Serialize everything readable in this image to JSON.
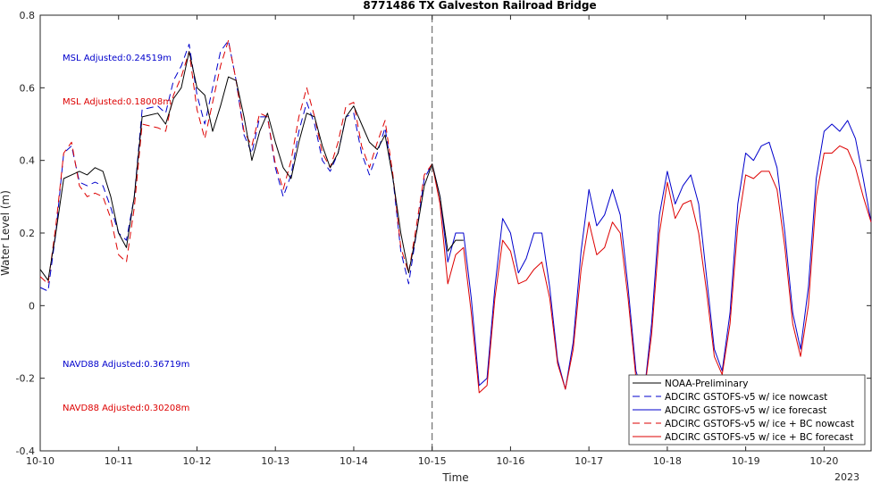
{
  "chart_data": {
    "type": "line",
    "title": "8771486 TX Galveston Railroad Bridge",
    "xlabel": "Time",
    "ylabel": "Water Level (m)",
    "x_year_label": "2023",
    "ylim": [
      -0.4,
      0.8
    ],
    "yticks": [
      -0.4,
      -0.2,
      0,
      0.2,
      0.4,
      0.6,
      0.8
    ],
    "ytick_labels": [
      "-0.4",
      "-0.2",
      "0",
      "0.2",
      "0.4",
      "0.6",
      "0.8"
    ],
    "xlim_days": [
      10.0,
      20.6
    ],
    "xticks_days": [
      10,
      11,
      12,
      13,
      14,
      15,
      16,
      17,
      18,
      19,
      20
    ],
    "xtick_labels": [
      "10-10",
      "10-11",
      "10-12",
      "10-13",
      "10-14",
      "10-15",
      "10-16",
      "10-17",
      "10-18",
      "10-19",
      "10-20"
    ],
    "forecast_start_day": 15.0,
    "grid": false,
    "legend_position": "bottom-right",
    "annotations": [
      {
        "text": "MSL Adjusted:0.24519m",
        "color": "#0000cc"
      },
      {
        "text": "MSL Adjusted:0.18008m",
        "color": "#dd0000"
      },
      {
        "text": "NAVD88 Adjusted:0.36719m",
        "color": "#0000cc"
      },
      {
        "text": "NAVD88 Adjusted:0.30208m",
        "color": "#dd0000"
      }
    ],
    "series": [
      {
        "name": "NOAA-Preliminary",
        "color": "#000000",
        "dash": "solid",
        "x": [
          10.0,
          10.1,
          10.2,
          10.3,
          10.4,
          10.5,
          10.6,
          10.7,
          10.8,
          10.9,
          11.0,
          11.1,
          11.2,
          11.3,
          11.5,
          11.6,
          11.7,
          11.8,
          11.9,
          12.0,
          12.1,
          12.2,
          12.3,
          12.4,
          12.5,
          12.6,
          12.7,
          12.8,
          12.9,
          13.0,
          13.1,
          13.2,
          13.3,
          13.4,
          13.5,
          13.6,
          13.7,
          13.8,
          13.9,
          14.0,
          14.1,
          14.2,
          14.3,
          14.4,
          14.5,
          14.6,
          14.7,
          14.8,
          14.9,
          15.0,
          15.1,
          15.2,
          15.3,
          15.4
        ],
        "y": [
          0.1,
          0.07,
          0.2,
          0.35,
          0.36,
          0.37,
          0.36,
          0.38,
          0.37,
          0.3,
          0.2,
          0.16,
          0.3,
          0.52,
          0.53,
          0.5,
          0.57,
          0.6,
          0.7,
          0.6,
          0.58,
          0.48,
          0.55,
          0.63,
          0.62,
          0.52,
          0.4,
          0.48,
          0.53,
          0.45,
          0.38,
          0.35,
          0.45,
          0.53,
          0.52,
          0.44,
          0.38,
          0.42,
          0.52,
          0.55,
          0.5,
          0.45,
          0.43,
          0.47,
          0.35,
          0.2,
          0.09,
          0.2,
          0.33,
          0.39,
          0.3,
          0.15,
          0.18,
          0.18
        ]
      },
      {
        "name": "ADCIRC GSTOFS-v5 w/ ice nowcast",
        "color": "#0000cc",
        "dash": "dashed",
        "x": [
          10.0,
          10.1,
          10.2,
          10.3,
          10.4,
          10.5,
          10.6,
          10.7,
          10.8,
          10.9,
          11.0,
          11.1,
          11.2,
          11.3,
          11.5,
          11.6,
          11.7,
          11.8,
          11.9,
          12.0,
          12.1,
          12.2,
          12.3,
          12.4,
          12.5,
          12.6,
          12.7,
          12.8,
          12.9,
          13.0,
          13.1,
          13.2,
          13.3,
          13.4,
          13.5,
          13.6,
          13.7,
          13.8,
          13.9,
          14.0,
          14.1,
          14.2,
          14.3,
          14.4,
          14.5,
          14.6,
          14.7,
          14.8,
          14.9,
          15.0
        ],
        "y": [
          0.05,
          0.04,
          0.2,
          0.42,
          0.44,
          0.34,
          0.33,
          0.34,
          0.33,
          0.27,
          0.2,
          0.18,
          0.3,
          0.54,
          0.55,
          0.53,
          0.62,
          0.66,
          0.72,
          0.58,
          0.5,
          0.6,
          0.7,
          0.73,
          0.62,
          0.47,
          0.42,
          0.52,
          0.52,
          0.38,
          0.3,
          0.36,
          0.48,
          0.56,
          0.5,
          0.4,
          0.37,
          0.42,
          0.52,
          0.53,
          0.42,
          0.36,
          0.42,
          0.49,
          0.35,
          0.15,
          0.06,
          0.2,
          0.35,
          0.39
        ]
      },
      {
        "name": "ADCIRC GSTOFS-v5 w/ ice forecast",
        "color": "#0000cc",
        "dash": "solid",
        "x": [
          15.0,
          15.1,
          15.2,
          15.3,
          15.4,
          15.5,
          15.6,
          15.7,
          15.8,
          15.9,
          16.0,
          16.1,
          16.2,
          16.3,
          16.4,
          16.5,
          16.6,
          16.7,
          16.8,
          16.9,
          17.0,
          17.1,
          17.2,
          17.3,
          17.4,
          17.5,
          17.6,
          17.7,
          17.8,
          17.9,
          18.0,
          18.1,
          18.2,
          18.3,
          18.4,
          18.5,
          18.6,
          18.7,
          18.8,
          18.9,
          19.0,
          19.1,
          19.2,
          19.3,
          19.4,
          19.5,
          19.6,
          19.7,
          19.8,
          19.9,
          20.0,
          20.1,
          20.2,
          20.3,
          20.4,
          20.5,
          20.6
        ],
        "y": [
          0.39,
          0.3,
          0.12,
          0.2,
          0.2,
          0.02,
          -0.22,
          -0.2,
          0.05,
          0.24,
          0.2,
          0.09,
          0.13,
          0.2,
          0.2,
          0.05,
          -0.15,
          -0.23,
          -0.1,
          0.15,
          0.32,
          0.22,
          0.25,
          0.32,
          0.25,
          0.05,
          -0.18,
          -0.25,
          -0.05,
          0.25,
          0.37,
          0.28,
          0.33,
          0.36,
          0.28,
          0.08,
          -0.12,
          -0.18,
          -0.02,
          0.28,
          0.42,
          0.4,
          0.44,
          0.45,
          0.38,
          0.2,
          -0.02,
          -0.12,
          0.05,
          0.35,
          0.48,
          0.5,
          0.48,
          0.51,
          0.46,
          0.35,
          0.23
        ]
      },
      {
        "name": "ADCIRC GSTOFS-v5 w/ ice + BC nowcast",
        "color": "#dd0000",
        "dash": "dashed",
        "x": [
          10.0,
          10.1,
          10.2,
          10.3,
          10.4,
          10.5,
          10.6,
          10.7,
          10.8,
          10.9,
          11.0,
          11.1,
          11.2,
          11.3,
          11.5,
          11.6,
          11.7,
          11.8,
          11.9,
          12.0,
          12.1,
          12.2,
          12.3,
          12.4,
          12.5,
          12.6,
          12.7,
          12.8,
          12.9,
          13.0,
          13.1,
          13.2,
          13.3,
          13.4,
          13.5,
          13.6,
          13.7,
          13.8,
          13.9,
          14.0,
          14.1,
          14.2,
          14.3,
          14.4,
          14.5,
          14.6,
          14.7,
          14.8,
          14.9,
          15.0
        ],
        "y": [
          0.08,
          0.06,
          0.22,
          0.42,
          0.45,
          0.33,
          0.3,
          0.31,
          0.3,
          0.24,
          0.14,
          0.12,
          0.27,
          0.5,
          0.49,
          0.48,
          0.58,
          0.63,
          0.7,
          0.54,
          0.46,
          0.56,
          0.66,
          0.73,
          0.62,
          0.48,
          0.44,
          0.53,
          0.52,
          0.39,
          0.32,
          0.4,
          0.52,
          0.6,
          0.52,
          0.42,
          0.38,
          0.45,
          0.55,
          0.56,
          0.44,
          0.38,
          0.45,
          0.51,
          0.36,
          0.16,
          0.09,
          0.22,
          0.36,
          0.39
        ]
      },
      {
        "name": "ADCIRC GSTOFS-v5 w/ ice + BC forecast",
        "color": "#dd0000",
        "dash": "solid",
        "x": [
          15.0,
          15.1,
          15.2,
          15.3,
          15.4,
          15.5,
          15.6,
          15.7,
          15.8,
          15.9,
          16.0,
          16.1,
          16.2,
          16.3,
          16.4,
          16.5,
          16.6,
          16.7,
          16.8,
          16.9,
          17.0,
          17.1,
          17.2,
          17.3,
          17.4,
          17.5,
          17.6,
          17.7,
          17.8,
          17.9,
          18.0,
          18.1,
          18.2,
          18.3,
          18.4,
          18.5,
          18.6,
          18.7,
          18.8,
          18.9,
          19.0,
          19.1,
          19.2,
          19.3,
          19.4,
          19.5,
          19.6,
          19.7,
          19.8,
          19.9,
          20.0,
          20.1,
          20.2,
          20.3,
          20.4,
          20.5,
          20.6
        ],
        "y": [
          0.39,
          0.28,
          0.06,
          0.14,
          0.16,
          -0.02,
          -0.24,
          -0.22,
          0.02,
          0.18,
          0.15,
          0.06,
          0.07,
          0.1,
          0.12,
          0.02,
          -0.16,
          -0.23,
          -0.12,
          0.1,
          0.23,
          0.14,
          0.16,
          0.23,
          0.2,
          0.02,
          -0.2,
          -0.25,
          -0.08,
          0.2,
          0.34,
          0.24,
          0.28,
          0.29,
          0.2,
          0.04,
          -0.14,
          -0.19,
          -0.05,
          0.22,
          0.36,
          0.35,
          0.37,
          0.37,
          0.32,
          0.16,
          -0.05,
          -0.14,
          0.0,
          0.3,
          0.42,
          0.42,
          0.44,
          0.43,
          0.38,
          0.3,
          0.23
        ]
      }
    ]
  }
}
